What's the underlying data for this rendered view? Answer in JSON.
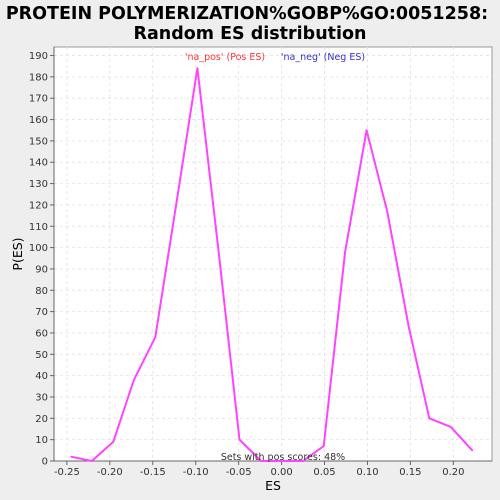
{
  "chart_data": {
    "type": "line",
    "title_lines": [
      "PROTEIN POLYMERIZATION%GOBP%GO:0051258:",
      "Random ES distribution"
    ],
    "xlabel": "ES",
    "ylabel": "P(ES)",
    "xlim": [
      -0.265,
      0.245
    ],
    "ylim": [
      0,
      194
    ],
    "xticks": [
      -0.25,
      -0.2,
      -0.15,
      -0.1,
      -0.05,
      0.0,
      0.05,
      0.1,
      0.15,
      0.2
    ],
    "xtick_labels": [
      "-0.25",
      "-0.20",
      "-0.15",
      "-0.10",
      "-0.05",
      "0.00",
      "0.05",
      "0.10",
      "0.15",
      "0.20"
    ],
    "yticks": [
      0,
      10,
      20,
      30,
      40,
      50,
      60,
      70,
      80,
      90,
      100,
      110,
      120,
      130,
      140,
      150,
      160,
      170,
      180,
      190
    ],
    "ytick_labels": [
      "0",
      "10",
      "20",
      "30",
      "40",
      "50",
      "60",
      "70",
      "80",
      "90",
      "100",
      "110",
      "120",
      "130",
      "140",
      "150",
      "160",
      "170",
      "180",
      "190"
    ],
    "grid": true,
    "series": [
      {
        "color": "#ff44ff",
        "x": [
          -0.245,
          -0.221,
          -0.196,
          -0.172,
          -0.147,
          -0.122,
          -0.098,
          -0.073,
          -0.049,
          -0.024,
          0.0,
          0.025,
          0.049,
          0.074,
          0.099,
          0.123,
          0.148,
          0.172,
          0.197,
          0.222
        ],
        "y": [
          2,
          0,
          9,
          38,
          58,
          122,
          184,
          97,
          10,
          0,
          0,
          0,
          7,
          98,
          155,
          117,
          63,
          20,
          16,
          5
        ]
      }
    ],
    "legend": {
      "position": "top-center",
      "entries": [
        {
          "label": "'na_pos' (Pos ES)",
          "color": "#ff3333"
        },
        {
          "label": "'na_neg' (Neg ES)",
          "color": "#3333cc"
        }
      ]
    },
    "annotation": "Sets with pos scores: 48%"
  }
}
